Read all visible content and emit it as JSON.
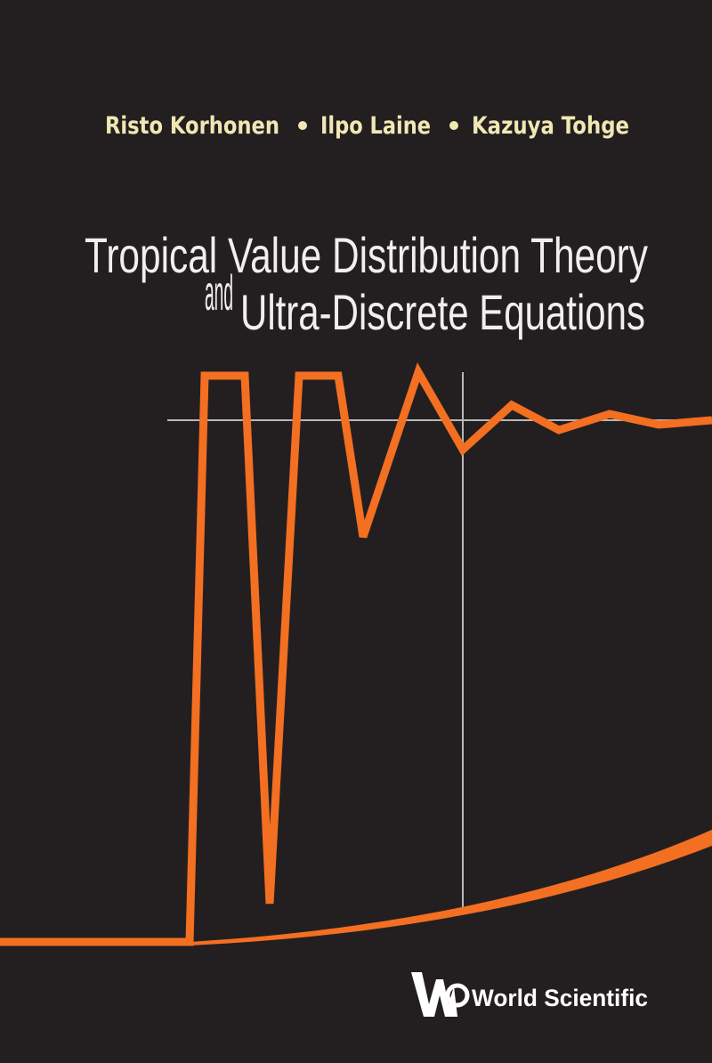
{
  "authors": [
    "Risto Korhonen",
    "Ilpo Laine",
    "Kazuya Tohge"
  ],
  "title": {
    "line1": "Tropical Value Distribution Theory",
    "connector": "and",
    "line2": "Ultra-Discrete Equations"
  },
  "publisher": "World Scientific"
}
